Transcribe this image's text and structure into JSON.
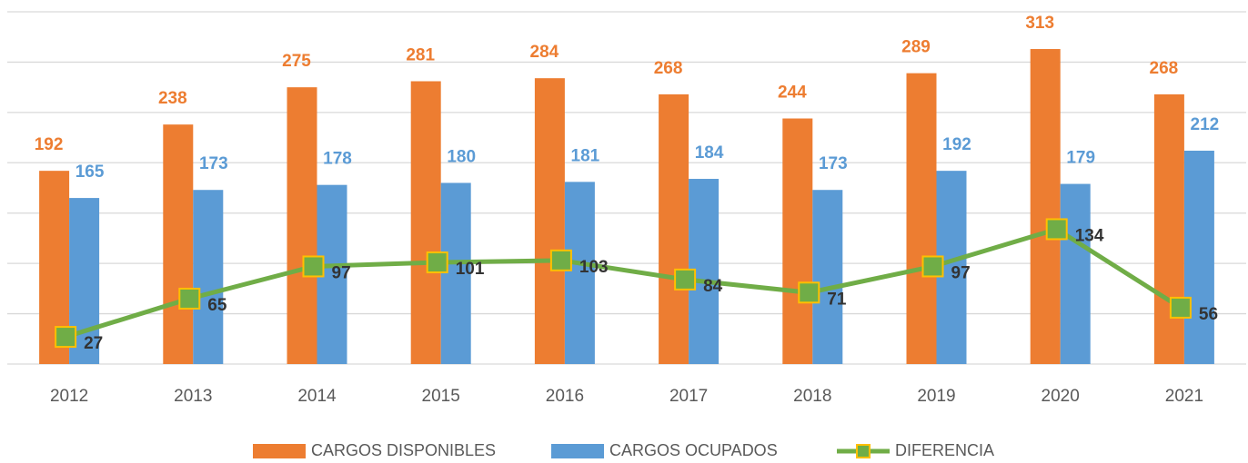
{
  "chart_data": {
    "type": "bar",
    "categories": [
      "2012",
      "2013",
      "2014",
      "2015",
      "2016",
      "2017",
      "2018",
      "2019",
      "2020",
      "2021"
    ],
    "series": [
      {
        "name": "CARGOS DISPONIBLES",
        "color": "#ed7d31",
        "values": [
          192,
          238,
          275,
          281,
          284,
          268,
          244,
          289,
          313,
          268
        ]
      },
      {
        "name": "CARGOS OCUPADOS",
        "color": "#5b9bd5",
        "values": [
          165,
          173,
          178,
          180,
          181,
          184,
          173,
          192,
          179,
          212
        ]
      },
      {
        "name": "DIFERENCIA",
        "type": "line",
        "color": "#70ad47",
        "marker_edge": "#ffc000",
        "values": [
          27,
          65,
          97,
          101,
          103,
          84,
          71,
          97,
          134,
          56
        ]
      }
    ],
    "ylim": [
      0,
      350
    ],
    "yticks": [
      0,
      50,
      100,
      150,
      200,
      250,
      300,
      350
    ],
    "grid": true,
    "legend": "bottom"
  }
}
